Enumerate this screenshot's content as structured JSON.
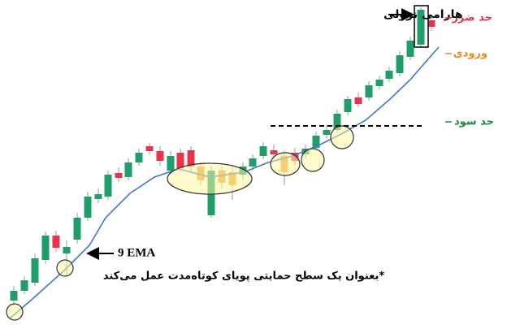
{
  "annotations": {
    "pattern": "هارامی نزولی",
    "stop_loss": "حد ضرر",
    "entry": "ورودی",
    "take_profit": "حد سود",
    "ema": "9 EMA",
    "note": "*بعنوان یک سطح حمایتی پویای کوتاه‌مدت عمل می‌کند"
  }
}
